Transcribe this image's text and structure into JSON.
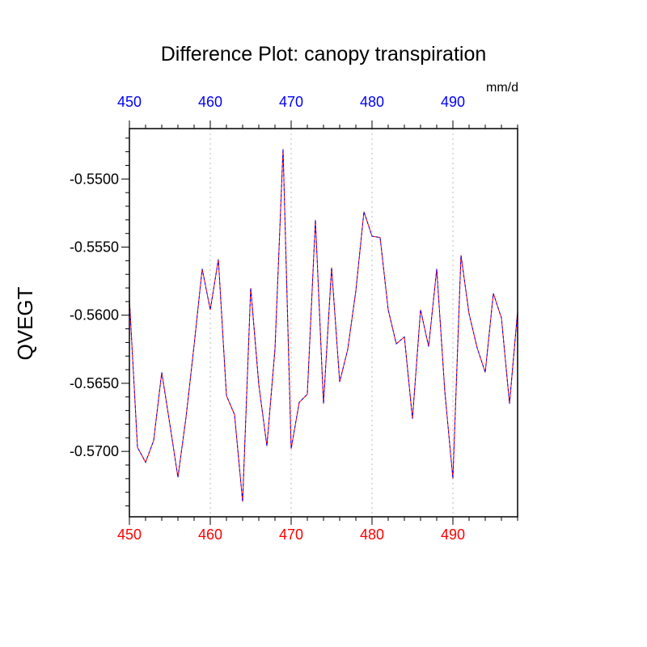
{
  "chart_data": {
    "type": "line",
    "title": "Difference Plot: canopy transpiration",
    "units_label": "mm/d",
    "ylabel": "QVEGT",
    "xlabel": "",
    "xlim": [
      450,
      498
    ],
    "ylim": [
      -0.5748,
      -0.5463
    ],
    "x_ticks": [
      450,
      460,
      470,
      480,
      490
    ],
    "x_tick_labels": [
      "450",
      "460",
      "470",
      "480",
      "490"
    ],
    "y_ticks": [
      -0.55,
      -0.555,
      -0.56,
      -0.565,
      -0.57
    ],
    "y_tick_labels": [
      "-0.5500",
      "-0.5550",
      "-0.5600",
      "-0.5650",
      "-0.5700"
    ],
    "grid": "vertical dotted",
    "colors": {
      "top_ticks": "#0000ff",
      "bottom_ticks": "#ff0000",
      "series_dash_a": "#ff0000",
      "series_dash_b": "#0000ff"
    },
    "series": [
      {
        "x": [
          450,
          451,
          452,
          453,
          454,
          455,
          456,
          457,
          458,
          459,
          460,
          461,
          462,
          463,
          464,
          465,
          466,
          467,
          468,
          469,
          470,
          471,
          472,
          473,
          474,
          475,
          476,
          477,
          478,
          479,
          480,
          481,
          482,
          483,
          484,
          485,
          486,
          487,
          488,
          489,
          490,
          491,
          492,
          493,
          494,
          495,
          496,
          497,
          498
        ],
        "values": [
          -0.5588,
          -0.5697,
          -0.5708,
          -0.5692,
          -0.5642,
          -0.568,
          -0.5719,
          -0.5675,
          -0.5622,
          -0.5566,
          -0.5596,
          -0.5559,
          -0.5659,
          -0.5673,
          -0.5737,
          -0.558,
          -0.5651,
          -0.5696,
          -0.5625,
          -0.5478,
          -0.5698,
          -0.5664,
          -0.5658,
          -0.553,
          -0.5665,
          -0.5565,
          -0.5649,
          -0.5625,
          -0.5582,
          -0.5524,
          -0.5542,
          -0.5543,
          -0.5596,
          -0.5621,
          -0.5616,
          -0.5676,
          -0.5596,
          -0.5623,
          -0.5566,
          -0.5656,
          -0.572,
          -0.5556,
          -0.5599,
          -0.5624,
          -0.5642,
          -0.5584,
          -0.5602,
          -0.5665,
          -0.5597
        ]
      }
    ]
  }
}
